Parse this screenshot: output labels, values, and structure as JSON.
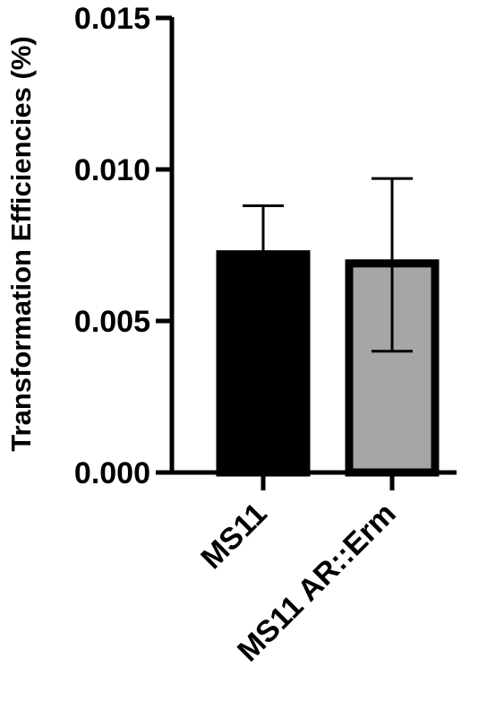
{
  "chart_data": {
    "type": "bar",
    "title": "",
    "xlabel": "",
    "ylabel": "Transformation Efficiencies (%)",
    "categories": [
      "MS11",
      "MS11 AR::Erm"
    ],
    "values": [
      0.0072,
      0.0069
    ],
    "errors": [
      {
        "low": 0.0055,
        "high": 0.0088
      },
      {
        "low": 0.004,
        "high": 0.0097
      }
    ],
    "bar_colors": [
      "#000000",
      "#a6a6a6"
    ],
    "bar_edge_color": "#000000",
    "ylim": [
      0,
      0.015
    ],
    "yticks": [
      "0.000",
      "0.005",
      "0.010",
      "0.015"
    ],
    "ytick_values": [
      0,
      0.005,
      0.01,
      0.015
    ],
    "grid": false,
    "legend": "none"
  }
}
